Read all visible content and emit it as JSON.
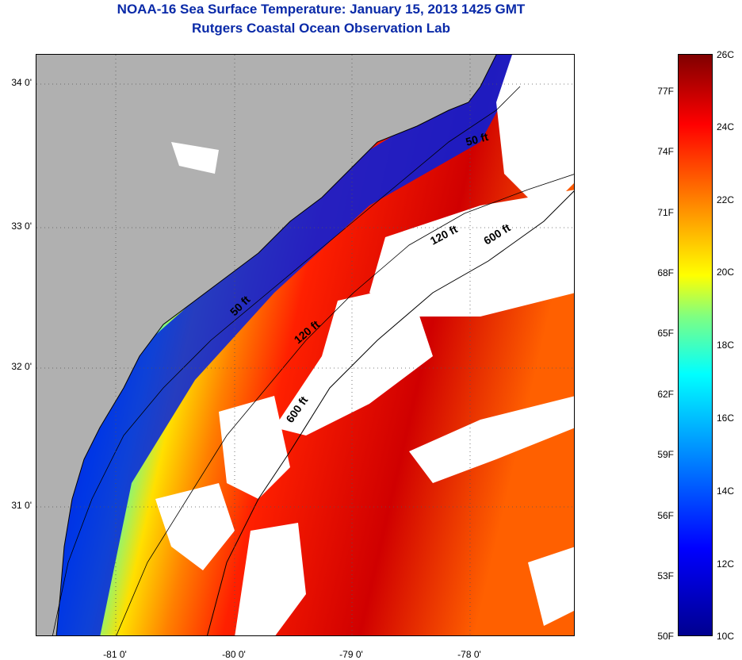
{
  "header": {
    "title": "NOAA-16 Sea Surface Temperature:  January 15, 2013 1425 GMT",
    "subtitle": "Rutgers Coastal Ocean Observation Lab"
  },
  "map": {
    "lat_labels": [
      "34 0'",
      "33 0'",
      "32 0'",
      "31 0'"
    ],
    "lon_labels": [
      "-81 0'",
      "-80 0'",
      "-79 0'",
      "-78 0'"
    ],
    "isobath_labels": [
      "50 ft",
      "120 ft",
      "600 ft",
      "50 ft",
      "120 ft",
      "600 ft"
    ],
    "colors": {
      "land": "#b0b0b0",
      "cloud": "#ffffff",
      "coast": "#000000"
    }
  },
  "colorbar": {
    "fahrenheit_labels": [
      "77F",
      "74F",
      "71F",
      "68F",
      "65F",
      "62F",
      "59F",
      "56F",
      "53F",
      "50F"
    ],
    "celsius_labels": [
      "26C",
      "24C",
      "22C",
      "20C",
      "18C",
      "16C",
      "14C",
      "12C",
      "10C"
    ]
  }
}
